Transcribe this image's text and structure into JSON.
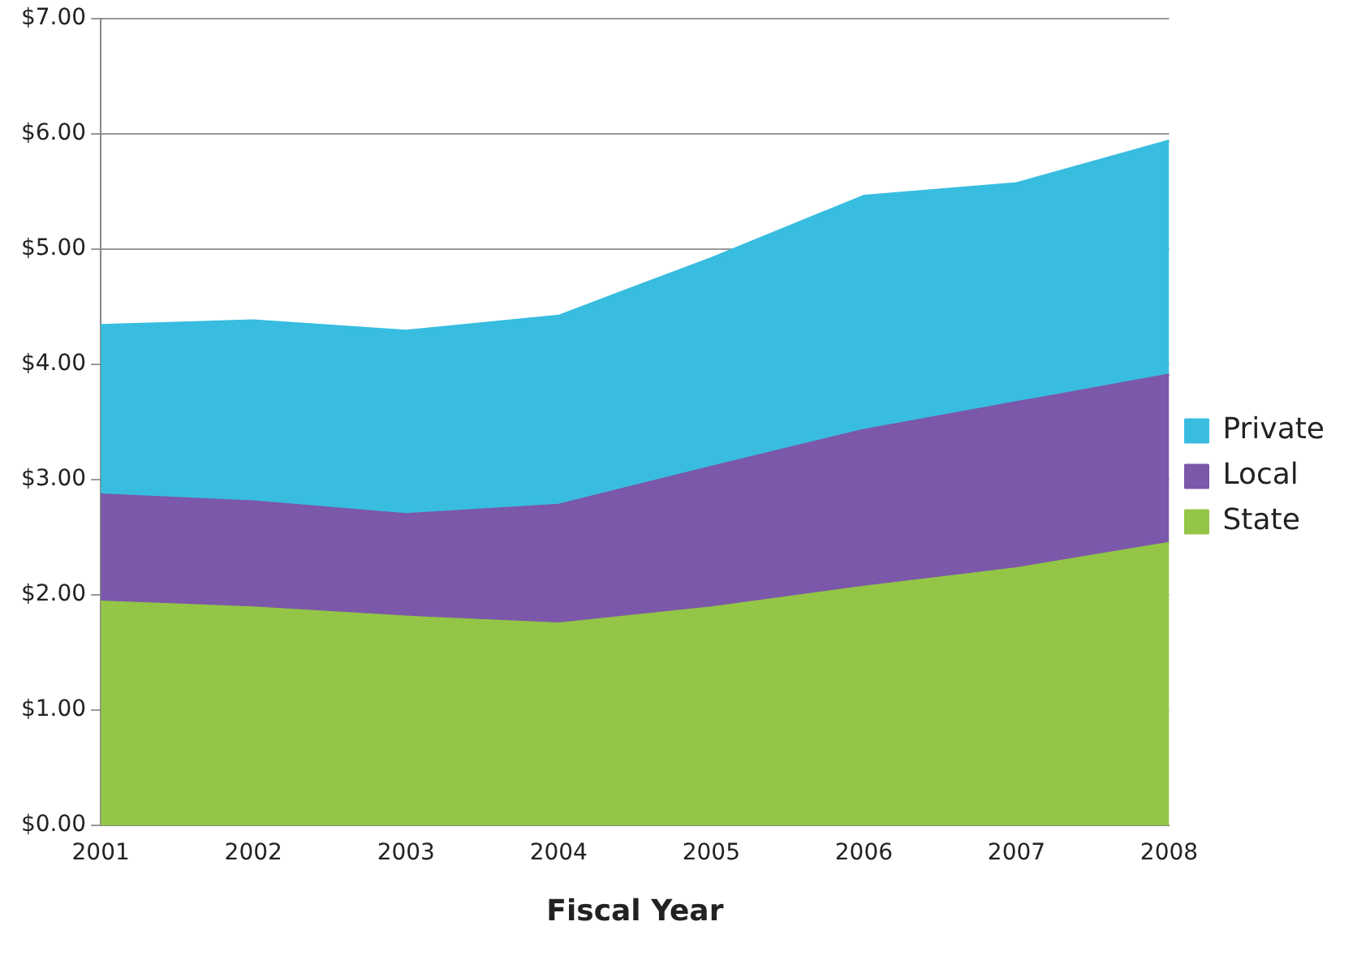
{
  "chart_data": {
    "type": "area",
    "stacked": true,
    "xlabel": "Fiscal Year",
    "categories": [
      "2001",
      "2002",
      "2003",
      "2004",
      "2005",
      "2006",
      "2007",
      "2008"
    ],
    "series": [
      {
        "name": "State",
        "color": "#94c547",
        "values": [
          1.94,
          1.89,
          1.81,
          1.75,
          1.89,
          2.07,
          2.23,
          2.45
        ]
      },
      {
        "name": "Local",
        "color": "#7b58a9",
        "values": [
          0.93,
          0.92,
          0.89,
          1.03,
          1.22,
          1.36,
          1.44,
          1.46
        ]
      },
      {
        "name": "Private",
        "color": "#38bde0",
        "values": [
          1.47,
          1.57,
          1.59,
          1.64,
          1.81,
          2.03,
          1.9,
          2.03
        ]
      }
    ],
    "ylim": [
      0,
      7
    ],
    "yticks": [
      {
        "value": 0,
        "label": "$0.00"
      },
      {
        "value": 1,
        "label": "$1.00"
      },
      {
        "value": 2,
        "label": "$2.00"
      },
      {
        "value": 3,
        "label": "$3.00"
      },
      {
        "value": 4,
        "label": "$4.00"
      },
      {
        "value": 5,
        "label": "$5.00"
      },
      {
        "value": 6,
        "label": "$6.00"
      },
      {
        "value": 7,
        "label": "$7.00"
      }
    ],
    "grid": "y",
    "legend": "right"
  }
}
